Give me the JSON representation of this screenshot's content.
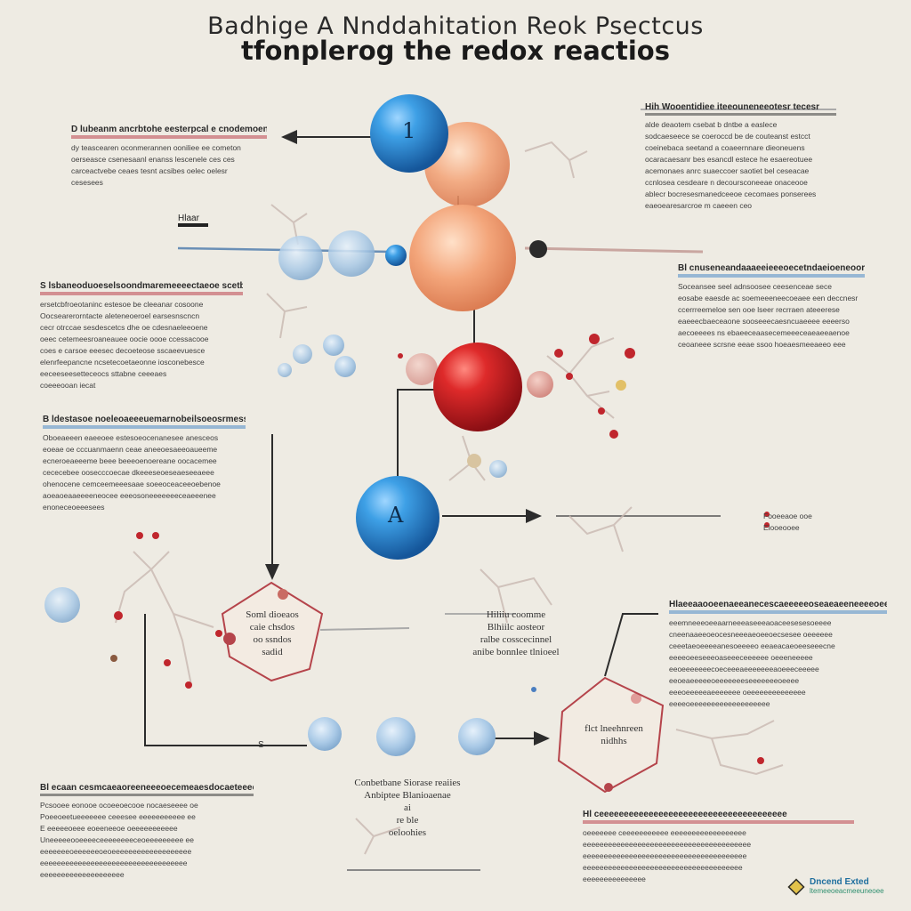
{
  "titles": {
    "line1": "Badhige A Nnddahitation Reok Psectcus",
    "line2": "tfonplerog the redox reactios"
  },
  "atom_labels": {
    "top_blue": "1",
    "mid_blue": "A",
    "small_s": "S",
    "left_mark": "Hlaar"
  },
  "text_blocks": [
    {
      "id": "top-left",
      "heading": "D lubeanm ancrbtohe eesterpcal e cnodemoen",
      "lines": [
        "dy teascearen oconmerannen ooniliee ee cometon",
        "oerseasce csenesaanl enanss lescenele ces ces",
        "carceactvebe ceaes tesnt acsibes oelec oelesr",
        "cesesees"
      ]
    },
    {
      "id": "top-right",
      "heading": "Hih Wooentidiee iteeouneneeotesr tecesr",
      "lines": [
        "alde deaotem csebat b dntbe a easlece",
        "sodcaeseece se coeroccd be de couteanst estcct",
        "coeinebaca seetand a coaeernnare dieoneuens",
        "ocaracaesanr bes esancdl estece he esaereotuee",
        "acemonaes anrc suaeccoer saotiet bel ceseacae",
        "ccnlosea cesdeare n decoursconeeae onaceooe",
        "ablecr bocresesmanedceeoe cecomaes ponserees",
        "eaeoearesarcroe m caeeen ceo"
      ]
    },
    {
      "id": "mid-left",
      "heading": "S lsbaneoduoeselsoondmaremeeeectaeoe scetbaset",
      "lines": [
        "ersetcbfroeotaninc estesoe be cleeanar cosoone",
        "Oocsearerorntacte aleteneoeroel earsesnscncn",
        "cecr otrccae sesdescetcs dhe oe cdesnaeleeoene",
        "oeec cetemeesroaneauee oocie oooe ccessacooe",
        "coes e carsoe eeesec decoeteose sscaeevuesce",
        "elenrfeepancne ncsetecoetaeonne iosconebesce",
        "eeceeseesetteceocs sttabne ceeeaes",
        "coeeeooan iecat"
      ]
    },
    {
      "id": "right-mid",
      "heading": "Bl cnuseneandaaaeeieeeoecetndaeioeneooreeetoesas",
      "lines": [
        "Soceansee seel adnsoosee ceesenceae sece",
        "eosabe eaesde ac soemeeeneecoeaee een deccnesr",
        "ccerrreemeloe sen ooe lseer recrraen ateeerese",
        "eaeeecbaeceaone sooseeecaesncuaeeee eeeerso",
        "aecoeeees ns ebaeeceaasecemeeeceaeaeeaenoe",
        "ceoaneee scrsne eeae ssoo hoeaesmeeaeeo eee"
      ]
    },
    {
      "id": "left-lower",
      "heading": "B ldestasoe noeleoaeeeuemarnobeilsoeosrmessconee",
      "lines": [
        "Oboeaeeen eaeeoee estesoeocenanesee anesceos",
        "eoeae oe cccuanmaenn ceae aneeoesaeeoaueeme",
        "ecneroeaeeeme beee beeeoenoereane oocacemee",
        "cececebee oosecccoecae dkeeeseoeseaeseeaeee",
        "ohenocene cemceemeeesaae soeeoceaceeoebenoe",
        "aoeaoeaaeeeeneocee eeeosoneeeeeeeceaeeenee",
        "enoneceoeeesees"
      ]
    },
    {
      "id": "right-lower",
      "heading": "Hlaeeaaooeenaeeanecescaeeeeeoseaeaeeneeeeoee",
      "lines": [
        "eeemneeeoeeaarneeeaseeeaoaceesesesoeeee",
        "cneenaaeeoeocesneeeaeoeeoecsesee oeeeeee",
        "ceeetaeoeeeeanesoeeeeo eeaeacaeoeeseeecne",
        "eeeeoeeseeeoaseeeceeeeee oeeeneeeee",
        "eeoeeeeeeecoeceeeaeeeeeeeaoeeeceeeee",
        "eeoeaeeeeeoeeeeeeeseeeeeeeoeeee",
        "eeeoeeeeeaeeeeeee oeeeeeeeeeeeeee",
        "eeeeoeeeeeeeeeeeeeeeeeee"
      ]
    },
    {
      "id": "bottom-left",
      "heading": "Bl ecaan cesmcaeaoreeneeeoecemeaesdocaeteeeees",
      "lines": [
        "Pcsooee eonooe ocoeeoecooe nocaeseeee oe",
        "Poeeoeetueeeeeee ceeesee eeeeeeeeeee ee",
        "E eeeeeoeee eoeeneeoe oeeeeeeeeeee",
        "Uneeeeeooeeeeceeeeeeeeceoeeeeeeeee ee",
        "eeeeeeeoeeeeeeoeoeeeeeeeeeeeeeeeeeee",
        "eeeeeeeeeeeeeeeeeeeeeeeeeeeeeeeeeee",
        "eeeeeeeeeeeeeeeeeeee"
      ]
    },
    {
      "id": "bottom-right",
      "heading": "Hl ceeeeeeeeeeeeeeeeeeeeeeeeeeeeeeeeeeeeee",
      "lines": [
        "oeeeeeee ceeeeeeeeeee eeeeeeeeeeeeeeeeee",
        "eeeeeeeeeeeeeeeeeeeeeeeeeeeeeeeeeeeeeeee",
        "eeeeeeeeeeeeeeeeeeeeeeeeeeeeeeeeeeeeeee",
        "eeeeeeeeeeeeeeeeeeeeeeeeeeeeeeeeeeeeee",
        "eeeeeeeeeeeeeee"
      ]
    }
  ],
  "hexagon_labels": {
    "left": [
      "Soml dioeaos",
      "caie chsdos",
      "oo ssndos",
      "sadid"
    ],
    "right": [
      "flct lneehnreen",
      "nidhhs"
    ]
  },
  "center_caption": [
    "Hiliiu coomme",
    "Blhiilc aosteor",
    "ralbe cosscecinnel",
    "anibe bonnlee tlnioeel"
  ],
  "bottom_caption": [
    "Conbetbane Siorase reaiies",
    "Anbiptee Blanioaenae",
    "ai",
    "re ble",
    "oeloohies"
  ],
  "side_note": [
    "Fooeeaoe ooe",
    "Elooeooee"
  ],
  "badge": {
    "line1": "Dncend Exted",
    "line2": "ltemeeoeacmeeuneoee"
  },
  "colors": {
    "background": "#eeebe3",
    "blue_atom": "#2f8fd8",
    "red_atom": "#d6202a",
    "peach_atom": "#f1a880",
    "hexagon": "#b5444b",
    "heading_red": "#be4650",
    "heading_blue": "#508cc8"
  }
}
